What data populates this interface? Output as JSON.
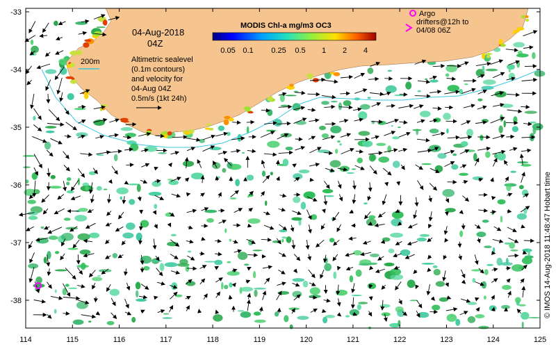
{
  "map": {
    "date_label": "04-Aug-2018",
    "time_label": "04Z",
    "contour_label": "200m",
    "sealevel_note": [
      "Altimetric sealevel",
      "(0.1m contours)",
      "and velocity for",
      "04-Aug 04Z"
    ],
    "velocity_scale_label": "0.5m/s (1kt 24h)",
    "colorbar": {
      "title": "MODIS Chl-a mg/m3 OC3",
      "ticks": [
        "0.05",
        "0.1",
        "0.25",
        "0.5",
        "1",
        "2",
        "4"
      ]
    },
    "argo_legend": [
      "Argo",
      "drifters@12h to",
      "04/08 06Z"
    ],
    "credit": "© IMOS 14-Aug-2018 11:48:47 Hobart time",
    "lon_ticks": [
      "114",
      "115",
      "116",
      "117",
      "118",
      "119",
      "120",
      "121",
      "122",
      "123",
      "124",
      "125"
    ],
    "lat_ticks": [
      "-33",
      "-34",
      "-35",
      "-36",
      "-37",
      "-38"
    ],
    "colors": {
      "land": "#f6c48e",
      "chl_green": "#2fbf5a",
      "chl_teal": "#3fc9a0",
      "contour": "#3cc8e0",
      "argo_marker": "#ff00ff"
    }
  }
}
